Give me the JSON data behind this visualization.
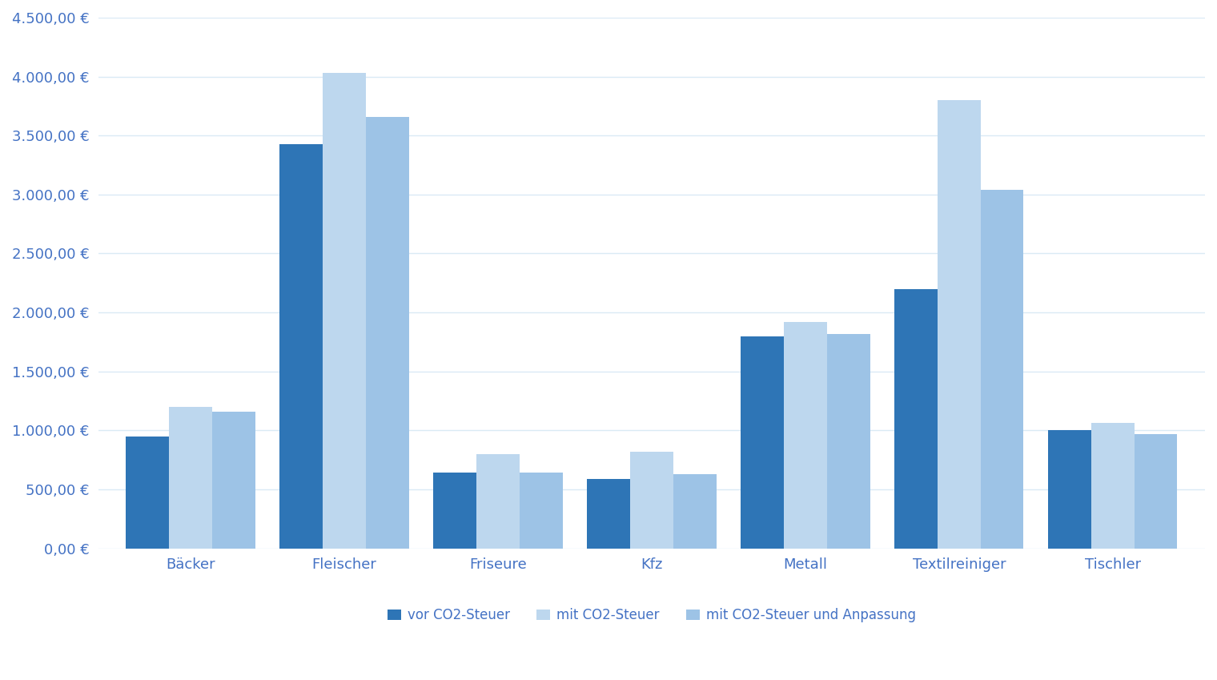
{
  "categories": [
    "Bäcker",
    "Fleischer",
    "Friseure",
    "Kfz",
    "Metall",
    "Textilreiniger",
    "Tischler"
  ],
  "series": [
    {
      "label": "vor CO2-Steuer",
      "color": "#2E75B6",
      "values": [
        950,
        3430,
        640,
        590,
        1800,
        2200,
        1000
      ]
    },
    {
      "label": "mit CO2-Steuer",
      "color": "#BDD7EE",
      "values": [
        1200,
        4030,
        800,
        820,
        1920,
        3800,
        1060
      ]
    },
    {
      "label": "mit CO2-Steuer und Anpassung",
      "color": "#9DC3E6",
      "values": [
        1160,
        3660,
        640,
        630,
        1820,
        3040,
        970
      ]
    }
  ],
  "ylim": [
    0,
    4500
  ],
  "ytick_step": 500,
  "background_color": "#FFFFFF",
  "text_color": "#4472C4",
  "grid_color": "#DAEAF5",
  "bar_width": 0.28,
  "figsize": [
    15.2,
    8.49
  ],
  "dpi": 100
}
